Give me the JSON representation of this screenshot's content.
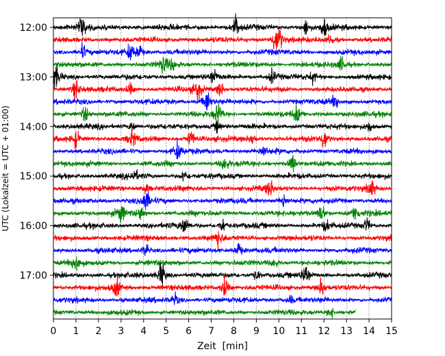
{
  "chart_data": {
    "type": "line",
    "title": "",
    "xlabel": "Zeit  [min]",
    "ylabel": "UTC (Lokalzeit = UTC + 01:00)",
    "xlim": [
      0,
      15
    ],
    "x_ticks": [
      0,
      1,
      2,
      3,
      4,
      5,
      6,
      7,
      8,
      9,
      10,
      11,
      12,
      13,
      14,
      15
    ],
    "y_ticks": [
      "12:00",
      "13:00",
      "14:00",
      "15:00",
      "16:00",
      "17:00"
    ],
    "grid": "vertical dotted",
    "colors": [
      "#000000",
      "#ff0000",
      "#0000ff",
      "#008000"
    ],
    "trace_interval_minutes": 15,
    "traces": [
      {
        "start": "12:00",
        "color": "#000000",
        "end_min": 15,
        "events": [
          [
            1.3,
            0.7
          ],
          [
            8.1,
            0.8
          ],
          [
            11.2,
            0.6
          ],
          [
            12.0,
            0.7
          ]
        ]
      },
      {
        "start": "12:15",
        "color": "#ff0000",
        "end_min": 15,
        "events": [
          [
            10.0,
            1.0
          ],
          [
            9.8,
            0.6
          ],
          [
            12.3,
            0.4
          ]
        ]
      },
      {
        "start": "12:30",
        "color": "#0000ff",
        "end_min": 15,
        "events": [
          [
            1.3,
            0.5
          ],
          [
            3.4,
            0.6
          ],
          [
            3.8,
            0.6
          ]
        ]
      },
      {
        "start": "12:45",
        "color": "#008000",
        "end_min": 15,
        "events": [
          [
            4.9,
            0.7
          ],
          [
            5.3,
            0.4
          ],
          [
            12.8,
            0.5
          ]
        ]
      },
      {
        "start": "13:00",
        "color": "#000000",
        "end_min": 15,
        "events": [
          [
            0.1,
            0.9
          ],
          [
            7.1,
            0.6
          ],
          [
            9.7,
            0.5
          ],
          [
            11.5,
            0.4
          ]
        ]
      },
      {
        "start": "13:15",
        "color": "#ff0000",
        "end_min": 15,
        "events": [
          [
            1.0,
            0.7
          ],
          [
            6.4,
            0.9
          ],
          [
            7.4,
            0.6
          ],
          [
            3.4,
            0.4
          ]
        ]
      },
      {
        "start": "13:30",
        "color": "#0000ff",
        "end_min": 15,
        "events": [
          [
            6.8,
            0.9
          ],
          [
            12.5,
            0.5
          ]
        ]
      },
      {
        "start": "13:45",
        "color": "#008000",
        "end_min": 15,
        "events": [
          [
            1.4,
            0.6
          ],
          [
            7.3,
            0.8
          ],
          [
            10.8,
            0.6
          ]
        ]
      },
      {
        "start": "14:00",
        "color": "#000000",
        "end_min": 15,
        "events": [
          [
            3.5,
            0.4
          ],
          [
            7.3,
            0.5
          ],
          [
            14.0,
            0.4
          ]
        ]
      },
      {
        "start": "14:15",
        "color": "#ff0000",
        "end_min": 15,
        "events": [
          [
            1.0,
            0.6
          ],
          [
            3.5,
            0.6
          ],
          [
            6.1,
            0.7
          ],
          [
            12.0,
            0.7
          ],
          [
            8.8,
            0.4
          ]
        ]
      },
      {
        "start": "14:30",
        "color": "#0000ff",
        "end_min": 15,
        "events": [
          [
            5.5,
            0.7
          ],
          [
            9.3,
            0.4
          ]
        ]
      },
      {
        "start": "14:45",
        "color": "#008000",
        "end_min": 15,
        "events": [
          [
            7.6,
            0.6
          ],
          [
            10.6,
            0.7
          ]
        ]
      },
      {
        "start": "15:00",
        "color": "#000000",
        "end_min": 15,
        "events": [
          [
            3.6,
            0.4
          ],
          [
            5.8,
            0.4
          ]
        ]
      },
      {
        "start": "15:15",
        "color": "#ff0000",
        "end_min": 15,
        "events": [
          [
            9.6,
            0.6
          ],
          [
            14.1,
            0.7
          ],
          [
            4.1,
            0.4
          ]
        ]
      },
      {
        "start": "15:30",
        "color": "#0000ff",
        "end_min": 15,
        "events": [
          [
            4.1,
            0.8
          ],
          [
            10.2,
            0.6
          ]
        ]
      },
      {
        "start": "15:45",
        "color": "#008000",
        "end_min": 15,
        "events": [
          [
            3.0,
            0.7
          ],
          [
            3.9,
            0.5
          ],
          [
            11.9,
            0.7
          ],
          [
            13.4,
            0.6
          ]
        ]
      },
      {
        "start": "16:00",
        "color": "#000000",
        "end_min": 15,
        "events": [
          [
            5.8,
            0.7
          ],
          [
            7.5,
            0.5
          ],
          [
            12.1,
            0.4
          ],
          [
            13.9,
            0.5
          ]
        ]
      },
      {
        "start": "16:15",
        "color": "#ff0000",
        "end_min": 15,
        "events": [
          [
            7.3,
            0.7
          ]
        ]
      },
      {
        "start": "16:30",
        "color": "#0000ff",
        "end_min": 15,
        "events": [
          [
            4.1,
            0.5
          ],
          [
            8.2,
            0.6
          ]
        ]
      },
      {
        "start": "16:45",
        "color": "#008000",
        "end_min": 15,
        "events": [
          [
            1.0,
            0.8
          ],
          [
            9.8,
            0.4
          ]
        ]
      },
      {
        "start": "17:00",
        "color": "#000000",
        "end_min": 15,
        "events": [
          [
            4.8,
            1.0
          ],
          [
            11.2,
            0.8
          ],
          [
            9.0,
            0.4
          ]
        ]
      },
      {
        "start": "17:15",
        "color": "#ff0000",
        "end_min": 15,
        "events": [
          [
            2.8,
            0.7
          ],
          [
            7.6,
            0.8
          ],
          [
            11.9,
            0.7
          ]
        ]
      },
      {
        "start": "17:30",
        "color": "#0000ff",
        "end_min": 15,
        "events": [
          [
            5.4,
            0.4
          ],
          [
            10.5,
            0.3
          ]
        ]
      },
      {
        "start": "17:45",
        "color": "#008000",
        "end_min": 13.4,
        "events": [
          [
            12.3,
            0.4
          ]
        ]
      }
    ]
  }
}
